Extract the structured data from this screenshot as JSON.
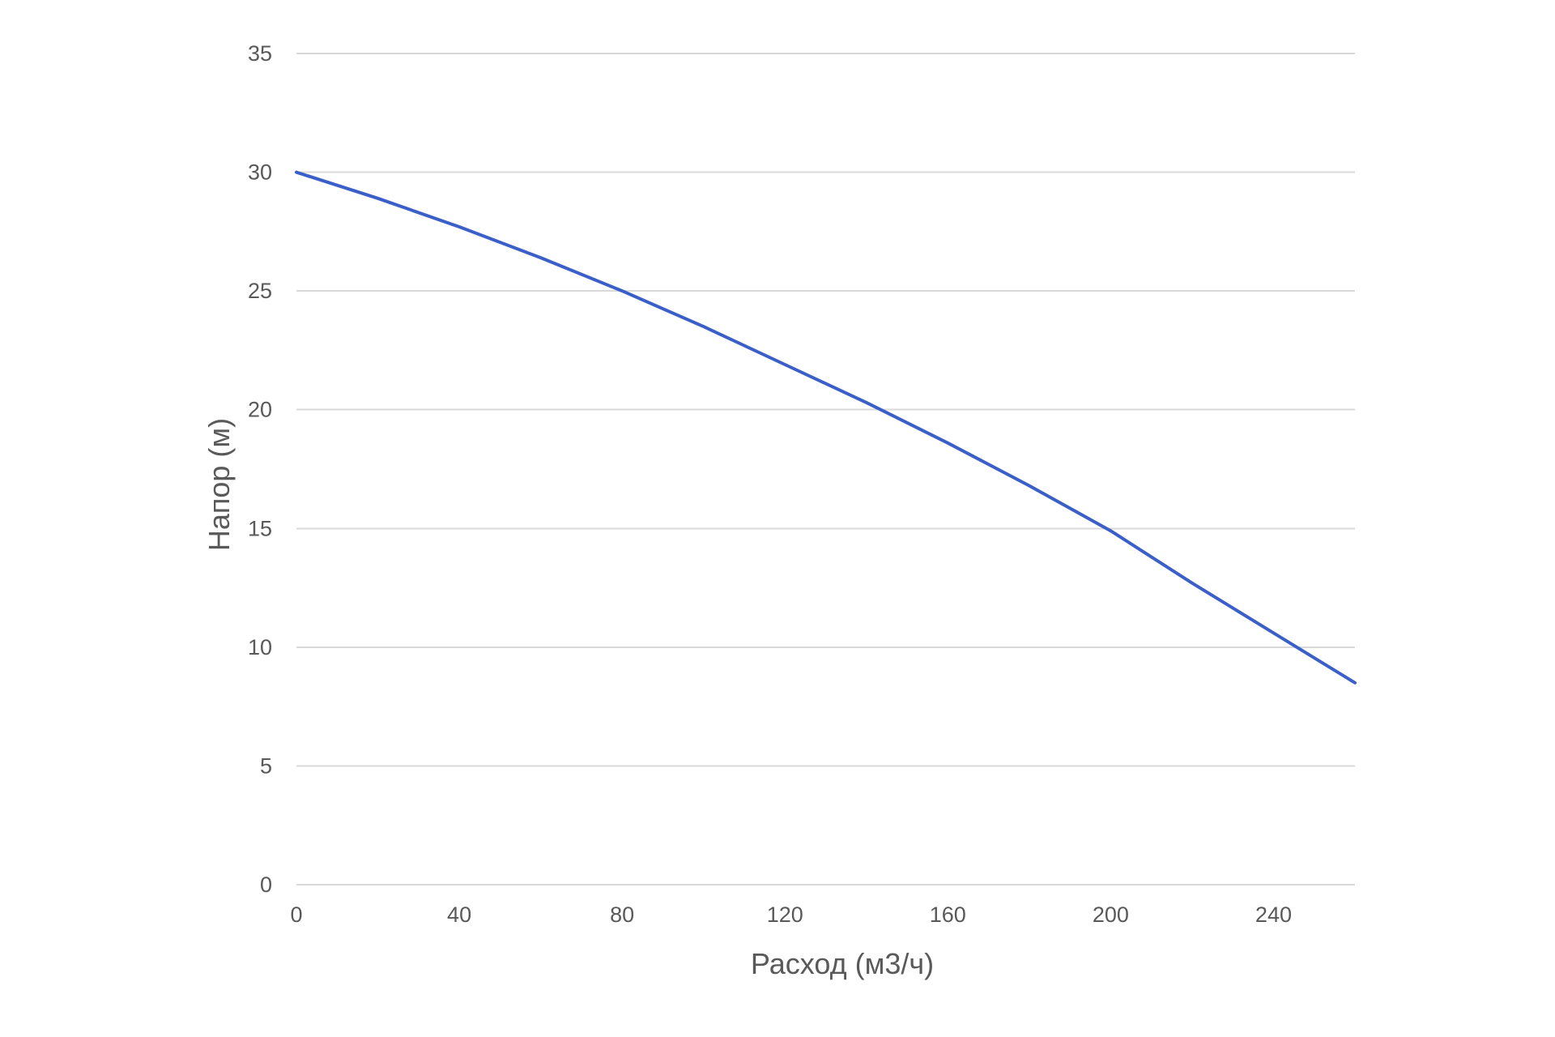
{
  "chart_data": {
    "type": "line",
    "title": "",
    "xlabel": "Расход (м3/ч)",
    "ylabel": "Напор (м)",
    "xlim": [
      0,
      260
    ],
    "ylim": [
      0,
      35
    ],
    "x_ticks": [
      0,
      40,
      80,
      120,
      160,
      200,
      240
    ],
    "y_ticks": [
      0,
      5,
      10,
      15,
      20,
      25,
      30,
      35
    ],
    "grid": "horizontal",
    "legend": "none",
    "series": [
      {
        "color": "#3a5fc8",
        "x": [
          0,
          20,
          40,
          60,
          80,
          100,
          120,
          140,
          160,
          180,
          200,
          220,
          240,
          260
        ],
        "y": [
          30.0,
          28.9,
          27.7,
          26.4,
          25.0,
          23.5,
          21.9,
          20.3,
          18.6,
          16.8,
          14.9,
          12.7,
          10.6,
          8.5
        ]
      }
    ]
  }
}
